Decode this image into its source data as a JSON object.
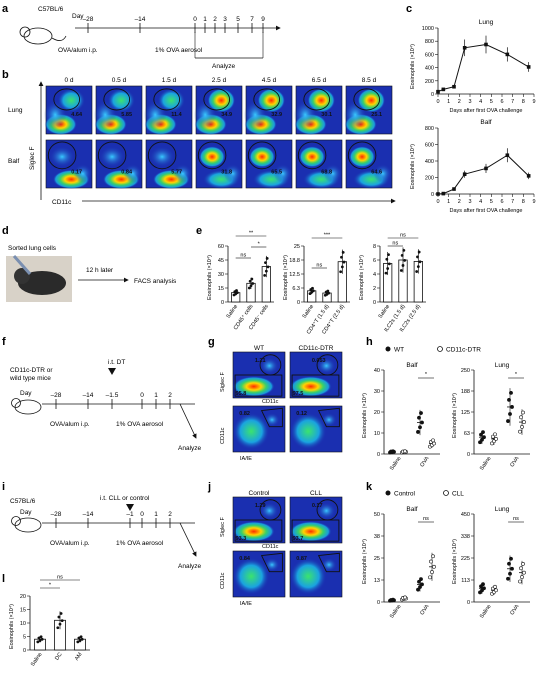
{
  "panels": {
    "a": {
      "letter": "a",
      "strain": "C57BL/6",
      "day_label": "Day",
      "ticks": [
        "–28",
        "–14",
        "0",
        "1",
        "2",
        "3",
        "5",
        "7",
        "9"
      ],
      "sensitization": "OVA/alum i.p.",
      "challenge": "1%  OVA aerosol",
      "analyze": "Analyze"
    },
    "b": {
      "letter": "b",
      "timepoints": [
        "0 d",
        "0.5 d",
        "1.5 d",
        "2.5 d",
        "4.5 d",
        "6.5 d",
        "8.5 d"
      ],
      "rows": [
        "Lung",
        "Balf"
      ],
      "lung_values": [
        "4.64",
        "5.85",
        "11.4",
        "34.9",
        "32.9",
        "30.1",
        "25.1"
      ],
      "balf_values": [
        "0.17",
        "0.84",
        "5.77",
        "31.8",
        "65.5",
        "68.8",
        "64.6"
      ],
      "yaxis": "Siglec F",
      "xaxis": "CD11c"
    },
    "c": {
      "letter": "c",
      "xlabel": "Days after first OVA challenge",
      "ylabel": "Eosinophils (×10⁴)"
    },
    "d": {
      "letter": "d",
      "sorted": "Sorted lung cells",
      "time": "12 h later",
      "analysis": "FACS analysis"
    },
    "e": {
      "letter": "e",
      "ylabel": "Eosinophils (×10⁴)",
      "groups1": [
        "Saline",
        "CD45⁺ cells",
        "CD45⁻ cells"
      ],
      "groups2": [
        "Saline",
        "CD4⁺T (1.5 d)",
        "CD4⁺T (2.5 d)"
      ],
      "groups3": [
        "Saline",
        "ILC2s (1.5 d)",
        "ILC2s (2.5 d)"
      ],
      "sig1": [
        "**",
        "ns",
        "*"
      ],
      "sig2": [
        "***",
        "ns"
      ],
      "sig3": [
        "ns",
        "ns"
      ]
    },
    "f": {
      "letter": "f",
      "mice": "CD11c-DTR or\nwild type mice",
      "dt": "i.t. DT",
      "day_label": "Day",
      "ticks": [
        "–28",
        "–14",
        "–1.5",
        "0",
        "1",
        "2"
      ],
      "sensitization": "OVA/alum i.p.",
      "challenge": "1%  OVA aerosol",
      "analyze": "Analyze"
    },
    "g": {
      "letter": "g",
      "cols": [
        "WT",
        "CD11c-DTR"
      ],
      "top_values": [
        "1.21",
        "0.053"
      ],
      "box_values": [
        "95.8",
        "97.5"
      ],
      "bottom_values": [
        "0.82",
        "0.12"
      ],
      "y1": "Siglec F",
      "x1": "CD11c",
      "y2": "CD11c",
      "x2": "IA/IE"
    },
    "h": {
      "letter": "h",
      "legend_wt": "WT",
      "legend_dtr": "CD11c-DTR",
      "left_title": "Balf",
      "right_title": "Lung",
      "ylabel": "Eosinophils (×10⁴)",
      "groups": [
        "Saline",
        "OVA"
      ],
      "sig": [
        "*",
        "*"
      ]
    },
    "i": {
      "letter": "i",
      "strain": "C57BL/6",
      "treatment": "i.t. CLL or control",
      "day_label": "Day",
      "ticks": [
        "–28",
        "–14",
        "–1",
        "0",
        "1",
        "2"
      ],
      "sensitization": "OVA/alum i.p.",
      "challenge": "1%  OVA aerosol",
      "analyze": "Analyze"
    },
    "j": {
      "letter": "j",
      "cols": [
        "Control",
        "CLL"
      ],
      "top_values": [
        "1.29",
        "0.17"
      ],
      "box_values": [
        "93.3",
        "93.7"
      ],
      "bottom_values": [
        "0.84",
        "0.87"
      ],
      "y1": "Siglec F",
      "x1": "CD11c",
      "y2": "CD11c",
      "x2": "IA/IE"
    },
    "k": {
      "letter": "k",
      "legend_ctrl": "Control",
      "legend_cll": "CLL",
      "left_title": "Balf",
      "right_title": "Lung",
      "ylabel": "Eosinophils (×10⁴)",
      "groups": [
        "Saline",
        "OVA"
      ],
      "sig": [
        "ns",
        "ns"
      ]
    },
    "l": {
      "letter": "l",
      "ylabel": "Eosinophils (×10⁴)",
      "groups": [
        "Saline",
        "DC",
        "AM"
      ],
      "sig": [
        "*",
        "ns"
      ]
    }
  },
  "chart_data": [
    {
      "type": "line",
      "title": "Lung",
      "xlabel": "Days after first OVA challenge",
      "ylabel": "Eosinophils (×10⁴)",
      "x": [
        0,
        0.5,
        1.5,
        2.5,
        4.5,
        6.5,
        8.5
      ],
      "y": [
        35,
        70,
        110,
        700,
        750,
        600,
        410
      ],
      "xlim": [
        0,
        9
      ],
      "ylim": [
        0,
        1000
      ],
      "yticks": [
        0,
        200,
        400,
        600,
        800,
        1000
      ]
    },
    {
      "type": "line",
      "title": "Balf",
      "xlabel": "Days after first OVA challenge",
      "ylabel": "Eosinophils (×10⁴)",
      "x": [
        0,
        0.5,
        1.5,
        2.5,
        4.5,
        6.5,
        8.5
      ],
      "y": [
        0,
        5,
        60,
        240,
        310,
        470,
        220
      ],
      "xlim": [
        0,
        9
      ],
      "ylim": [
        0,
        800
      ],
      "yticks": [
        0,
        200,
        400,
        600,
        800
      ]
    },
    {
      "type": "bar",
      "ylabel": "Eosinophils (×10⁴)",
      "categories": [
        "Saline",
        "CD45⁺ cells",
        "CD45⁻ cells"
      ],
      "values": [
        10,
        20,
        38
      ],
      "ylim": [
        0,
        60
      ]
    },
    {
      "type": "bar",
      "ylabel": "Eosinophils (×10⁴)",
      "categories": [
        "Saline",
        "CD4⁺T (1.5 d)",
        "CD4⁺T (2.5 d)"
      ],
      "values": [
        5,
        4,
        18
      ],
      "ylim": [
        0,
        25
      ]
    },
    {
      "type": "bar",
      "ylabel": "Eosinophils (×10⁴)",
      "categories": [
        "Saline",
        "ILC2s (1.5 d)",
        "ILC2s (2.5 d)"
      ],
      "values": [
        5.5,
        6,
        5.8
      ],
      "ylim": [
        0,
        8
      ]
    },
    {
      "type": "scatter",
      "title": "Balf",
      "categories": [
        "Saline",
        "OVA"
      ],
      "series": [
        {
          "name": "WT",
          "values": [
            1,
            15
          ]
        },
        {
          "name": "CD11c-DTR",
          "values": [
            1,
            5
          ]
        }
      ],
      "ylim": [
        0,
        40
      ]
    },
    {
      "type": "scatter",
      "title": "Lung",
      "categories": [
        "Saline",
        "OVA"
      ],
      "series": [
        {
          "name": "WT",
          "values": [
            50,
            140
          ]
        },
        {
          "name": "CD11c-DTR",
          "values": [
            45,
            95
          ]
        }
      ],
      "ylim": [
        0,
        250
      ]
    },
    {
      "type": "scatter",
      "title": "Balf",
      "categories": [
        "Saline",
        "OVA"
      ],
      "series": [
        {
          "name": "Control",
          "values": [
            1,
            10
          ]
        },
        {
          "name": "CLL",
          "values": [
            2,
            20
          ]
        }
      ],
      "ylim": [
        0,
        50
      ]
    },
    {
      "type": "scatter",
      "title": "Lung",
      "categories": [
        "Saline",
        "OVA"
      ],
      "series": [
        {
          "name": "Control",
          "values": [
            70,
            170
          ]
        },
        {
          "name": "CLL",
          "values": [
            60,
            150
          ]
        }
      ],
      "ylim": [
        0,
        450
      ]
    },
    {
      "type": "bar",
      "ylabel": "Eosinophils (×10⁴)",
      "categories": [
        "Saline",
        "DC",
        "AM"
      ],
      "values": [
        4,
        11,
        4
      ],
      "ylim": [
        0,
        20
      ]
    }
  ]
}
